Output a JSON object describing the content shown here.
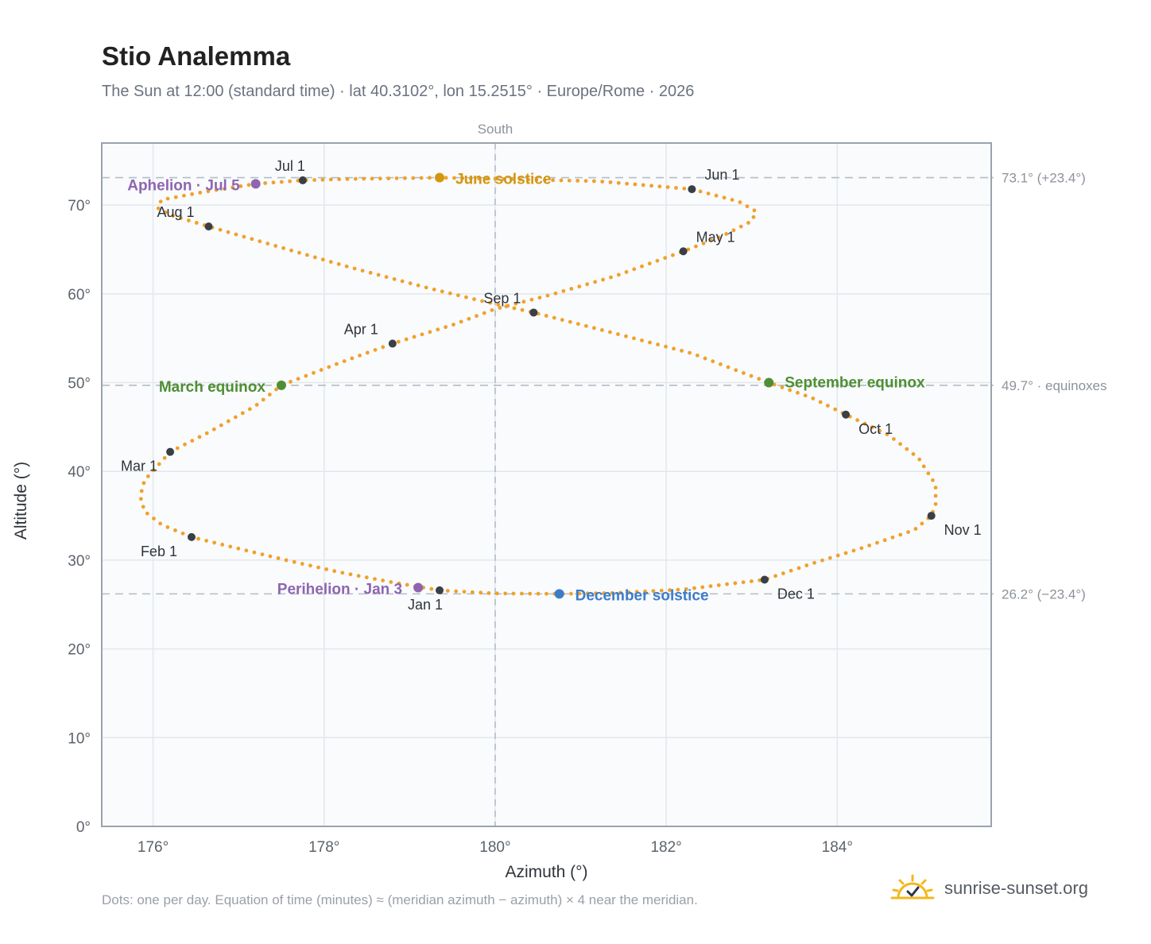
{
  "title": "Stio Analemma",
  "subtitle": "The Sun at 12:00 (standard time) · lat 40.3102°, lon 15.2515° · Europe/Rome · 2026",
  "footnote": "Dots: one per day. Equation of time (minutes) ≈ (meridian azimuth − azimuth) × 4 near the meridian.",
  "brand": {
    "text": "sunrise-sunset.org",
    "icon": "sun-check-icon"
  },
  "colors": {
    "path": "#f0a12a",
    "month_marker": "#3a3f47",
    "aphelion": "#8e65b0",
    "perihelion": "#8e65b0",
    "june": "#d4960e",
    "december": "#3d7cc9",
    "equinox": "#4f8f33",
    "plot_bg": "#f9fbfd",
    "grid": "#e3e7ec",
    "axis": "#9aa3ae",
    "ref_line": "#b4bdc6"
  },
  "chart_data": {
    "type": "scatter",
    "xlabel": "Azimuth (°)",
    "ylabel": "Altitude (°)",
    "xlim": [
      175.4,
      185.8
    ],
    "ylim": [
      0,
      77
    ],
    "x_ticks": [
      176,
      178,
      180,
      182,
      184
    ],
    "x_tick_labels": [
      "176°",
      "178°",
      "180°",
      "182°",
      "184°"
    ],
    "y_ticks": [
      0,
      10,
      20,
      30,
      40,
      50,
      60,
      70
    ],
    "y_tick_labels": [
      "0°",
      "10°",
      "20°",
      "30°",
      "40°",
      "50°",
      "60°",
      "70°"
    ],
    "grid": true,
    "meridian": {
      "x": 180,
      "label": "South"
    },
    "reference_lines": [
      {
        "y": 73.1,
        "label": "73.1° (+23.4°)"
      },
      {
        "y": 49.7,
        "label": "49.7° · equinoxes"
      },
      {
        "y": 26.2,
        "label": "26.2° (−23.4°)"
      }
    ],
    "daily_path": {
      "name": "Daily solar position",
      "points": [
        [
          179.35,
          26.6
        ],
        [
          178.8,
          27.5
        ],
        [
          178.2,
          28.6
        ],
        [
          177.6,
          29.9
        ],
        [
          177.0,
          31.3
        ],
        [
          176.45,
          32.6
        ],
        [
          176.1,
          34.0
        ],
        [
          175.9,
          35.5
        ],
        [
          175.85,
          37.2
        ],
        [
          175.9,
          39.0
        ],
        [
          176.05,
          40.6
        ],
        [
          176.2,
          42.2
        ],
        [
          176.65,
          44.4
        ],
        [
          177.2,
          47.4
        ],
        [
          177.5,
          49.7
        ],
        [
          178.2,
          52.3
        ],
        [
          178.8,
          54.4
        ],
        [
          179.5,
          56.5
        ],
        [
          180.0,
          58.3
        ],
        [
          180.65,
          59.9
        ],
        [
          181.4,
          62.0
        ],
        [
          182.2,
          64.8
        ],
        [
          182.65,
          66.5
        ],
        [
          183.0,
          68.2
        ],
        [
          183.05,
          69.3
        ],
        [
          182.85,
          70.4
        ],
        [
          182.3,
          71.8
        ],
        [
          181.2,
          72.7
        ],
        [
          179.35,
          73.1
        ],
        [
          178.3,
          72.95
        ],
        [
          177.75,
          72.8
        ],
        [
          177.2,
          72.4
        ],
        [
          176.6,
          71.5
        ],
        [
          176.1,
          70.6
        ],
        [
          176.05,
          69.7
        ],
        [
          176.2,
          68.9
        ],
        [
          176.65,
          67.6
        ],
        [
          177.4,
          65.5
        ],
        [
          178.3,
          63.0
        ],
        [
          179.2,
          60.7
        ],
        [
          179.8,
          59.3
        ],
        [
          180.45,
          57.9
        ],
        [
          181.3,
          55.8
        ],
        [
          182.3,
          53.3
        ],
        [
          183.2,
          50.0
        ],
        [
          183.7,
          48.3
        ],
        [
          184.1,
          46.4
        ],
        [
          184.6,
          44.1
        ],
        [
          184.95,
          41.5
        ],
        [
          185.15,
          38.5
        ],
        [
          185.15,
          36.3
        ],
        [
          185.1,
          35.0
        ],
        [
          184.9,
          33.4
        ],
        [
          184.3,
          31.4
        ],
        [
          183.7,
          29.6
        ],
        [
          183.15,
          27.8
        ],
        [
          182.2,
          26.7
        ],
        [
          181.4,
          26.3
        ],
        [
          180.75,
          26.2
        ],
        [
          180.0,
          26.25
        ],
        [
          179.35,
          26.6
        ]
      ]
    },
    "month_markers": [
      {
        "label": "Jan 1",
        "x": 179.35,
        "y": 26.6
      },
      {
        "label": "Feb 1",
        "x": 176.45,
        "y": 32.6
      },
      {
        "label": "Mar 1",
        "x": 176.2,
        "y": 42.2
      },
      {
        "label": "Apr 1",
        "x": 178.8,
        "y": 54.4
      },
      {
        "label": "May 1",
        "x": 182.2,
        "y": 64.8
      },
      {
        "label": "Jun 1",
        "x": 182.3,
        "y": 71.8
      },
      {
        "label": "Jul 1",
        "x": 177.75,
        "y": 72.8
      },
      {
        "label": "Aug 1",
        "x": 176.65,
        "y": 67.6
      },
      {
        "label": "Sep 1",
        "x": 180.45,
        "y": 57.9
      },
      {
        "label": "Oct 1",
        "x": 184.1,
        "y": 46.4
      },
      {
        "label": "Nov 1",
        "x": 185.1,
        "y": 35.0
      },
      {
        "label": "Dec 1",
        "x": 183.15,
        "y": 27.8
      }
    ],
    "events": [
      {
        "label": "Aphelion · Jul 5",
        "x": 177.2,
        "y": 72.4,
        "color_key": "aphelion"
      },
      {
        "label": "June solstice",
        "x": 179.35,
        "y": 73.1,
        "color_key": "june"
      },
      {
        "label": "March equinox",
        "x": 177.5,
        "y": 49.7,
        "color_key": "equinox"
      },
      {
        "label": "September equinox",
        "x": 183.2,
        "y": 50.0,
        "color_key": "equinox"
      },
      {
        "label": "Perihelion · Jan 3",
        "x": 179.1,
        "y": 26.9,
        "color_key": "perihelion"
      },
      {
        "label": "December solstice",
        "x": 180.75,
        "y": 26.2,
        "color_key": "december"
      }
    ]
  }
}
